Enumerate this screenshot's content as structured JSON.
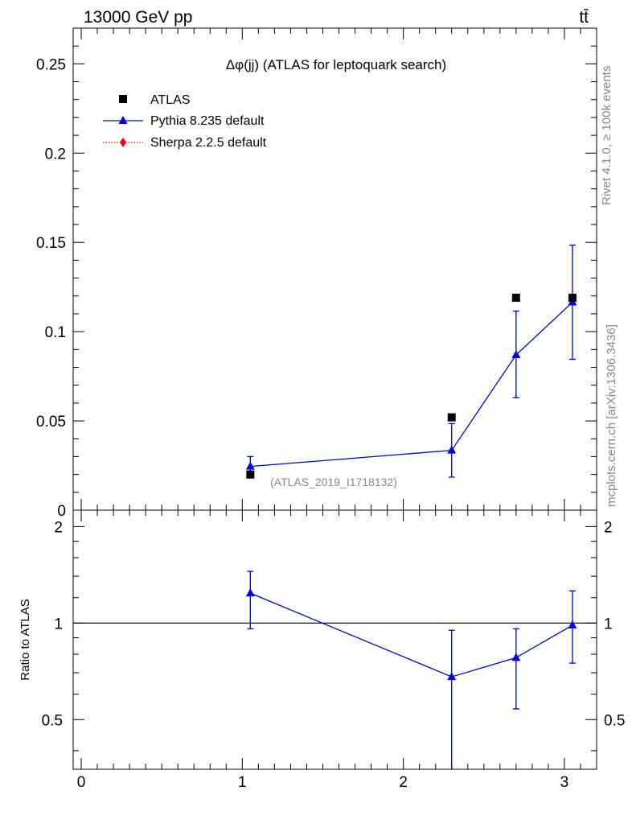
{
  "chart_data": [
    {
      "type": "scatter",
      "panel": "main",
      "title": "Δφ(jj) (ATLAS for leptoquark search)",
      "ylabel": "",
      "xlim": [
        -0.05,
        3.2
      ],
      "ylim": [
        0,
        0.27
      ],
      "yticks": [
        0,
        0.05,
        0.1,
        0.15,
        0.2,
        0.25
      ],
      "ytick_labels": [
        "0",
        "0.05",
        "0.1",
        "0.15",
        "0.2",
        "0.25"
      ],
      "legend_position": "top-left",
      "series": [
        {
          "name": "ATLAS",
          "style": "black squares",
          "color": "#000000",
          "x": [
            1.05,
            2.3,
            2.7,
            3.05
          ],
          "y": [
            0.02,
            0.052,
            0.119,
            0.119
          ]
        },
        {
          "name": "Pythia 8.235 default",
          "style": "blue triangles with line",
          "color": "#0000dd",
          "x": [
            1.05,
            2.3,
            2.7,
            3.05
          ],
          "y": [
            0.0245,
            0.0335,
            0.087,
            0.1165
          ],
          "yerr_low": [
            0.018,
            0.0185,
            0.063,
            0.0845
          ],
          "yerr_high": [
            0.03,
            0.0485,
            0.1115,
            0.1485
          ]
        },
        {
          "name": "Sherpa 2.2.5 default",
          "style": "red diamonds dotted",
          "color": "#ee0000",
          "x": [],
          "y": []
        }
      ]
    },
    {
      "type": "line",
      "panel": "ratio",
      "ylabel": "Ratio to ATLAS",
      "xlim": [
        -0.05,
        3.2
      ],
      "ylim": [
        0.35,
        2.25
      ],
      "yticks": [
        0.5,
        1,
        2
      ],
      "ytick_labels": [
        "0.5",
        "1",
        "2"
      ],
      "xticks": [
        0,
        1,
        2,
        3
      ],
      "xtick_labels": [
        "0",
        "1",
        "2",
        "3"
      ],
      "reference_line": 1,
      "series": [
        {
          "name": "Pythia 8.235 default",
          "color": "#0000dd",
          "x": [
            1.05,
            2.3,
            2.7,
            3.05
          ],
          "y": [
            1.24,
            0.68,
            0.78,
            0.985
          ],
          "yerr_low": [
            0.96,
            0.35,
            0.54,
            0.75
          ],
          "yerr_high": [
            1.45,
            0.95,
            0.96,
            1.26
          ]
        }
      ]
    }
  ],
  "header": {
    "energy_label": "13000 GeV pp",
    "process_label": "tt̄"
  },
  "side_labels": {
    "rivet": "Rivet 4.1.0, ≥ 100k events",
    "mcplots": "mcplots.cern.ch [arXiv:1306.3436]"
  },
  "analysis_id": "(ATLAS_2019_I1718132)"
}
